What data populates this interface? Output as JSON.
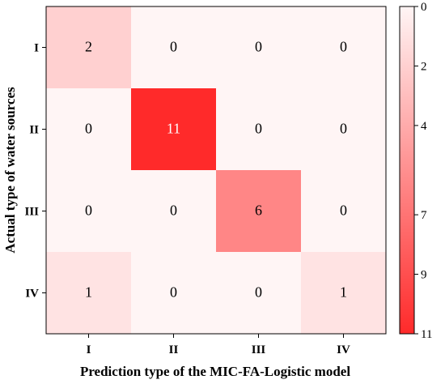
{
  "chart_data": {
    "type": "heatmap",
    "title": "",
    "xlabel": "Prediction type of the MIC-FA-Logistic model",
    "ylabel": "Actual type of water sources",
    "x_categories": [
      "I",
      "II",
      "III",
      "IV"
    ],
    "y_categories": [
      "I",
      "II",
      "III",
      "IV"
    ],
    "values": [
      [
        2,
        0,
        0,
        0
      ],
      [
        0,
        11,
        0,
        0
      ],
      [
        0,
        0,
        6,
        0
      ],
      [
        1,
        0,
        0,
        1
      ]
    ],
    "value_range": [
      0,
      11
    ],
    "colormap": {
      "low": "#fff5f5",
      "high": "#ff2a2a"
    },
    "colorbar": {
      "tick_labels": [
        "0",
        "2",
        "4",
        "7",
        "9",
        "11"
      ],
      "tick_values": [
        0,
        2,
        4,
        7,
        9,
        11
      ]
    }
  }
}
